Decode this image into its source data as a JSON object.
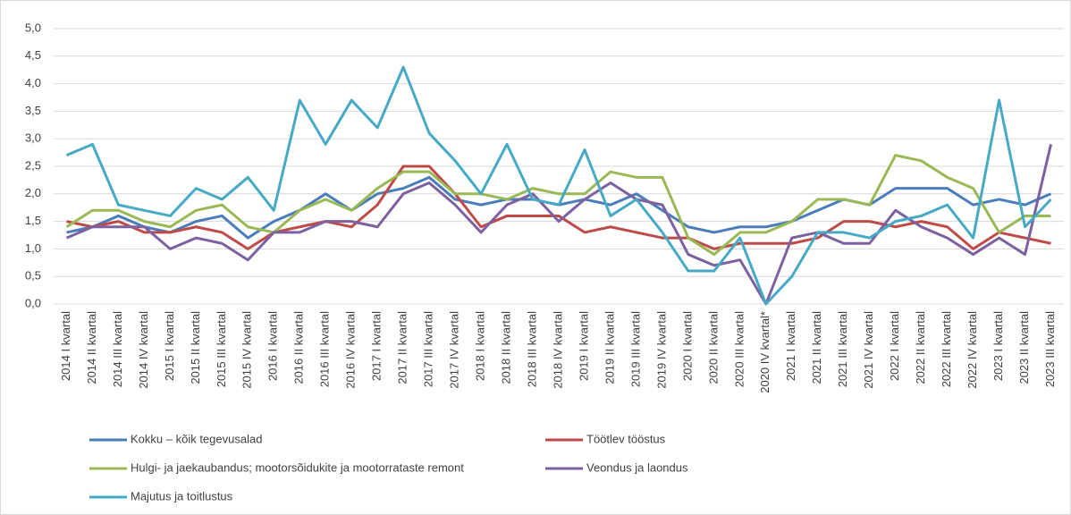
{
  "chart_data": {
    "type": "line",
    "categories": [
      "2014 I kvartal",
      "2014 II kvartal",
      "2014 III kvartal",
      "2014 IV kvartal",
      "2015 I kvartal",
      "2015 II kvartal",
      "2015 III kvartal",
      "2015 IV kvartal",
      "2016 I kvartal",
      "2016 II kvartal",
      "2016 III kvartal",
      "2016 IV kvartal",
      "2017 I kvartal",
      "2017 II kvartal",
      "2017 III kvartal",
      "2017 IV kvartal",
      "2018 I kvartal",
      "2018 II kvartal",
      "2018 III kvartal",
      "2018 IV kvartal",
      "2019 I kvartal",
      "2019 II kvartal",
      "2019 III kvartal",
      "2019 IV kvartal",
      "2020 I kvartal",
      "2020 II kvartal",
      "2020 III kvartal",
      "2020 IV kvartal*",
      "2021 I kvartal",
      "2021 II kvartal",
      "2021 III kvartal",
      "2021 IV kvartal",
      "2022 I kvartal",
      "2022 II kvartal",
      "2022 III kvartal",
      "2022 IV kvartal",
      "2023 I kvartal",
      "2023 II kvartal",
      "2023 III kvartal"
    ],
    "series": [
      {
        "name": "Kokku – kõik tegevusalad",
        "color": "#4a7ebb",
        "values": [
          1.3,
          1.4,
          1.6,
          1.4,
          1.3,
          1.5,
          1.6,
          1.2,
          1.5,
          1.7,
          2.0,
          1.7,
          2.0,
          2.1,
          2.3,
          1.9,
          1.8,
          1.9,
          1.9,
          1.8,
          1.9,
          1.8,
          2.0,
          1.7,
          1.4,
          1.3,
          1.4,
          1.4,
          1.5,
          1.7,
          1.9,
          1.8,
          2.1,
          2.1,
          2.1,
          1.8,
          1.9,
          1.8,
          2.0
        ]
      },
      {
        "name": "Töötlev tööstus",
        "color": "#be4b48",
        "values": [
          1.5,
          1.4,
          1.5,
          1.3,
          1.3,
          1.4,
          1.3,
          1.0,
          1.3,
          1.4,
          1.5,
          1.4,
          1.8,
          2.5,
          2.5,
          2.0,
          1.4,
          1.6,
          1.6,
          1.6,
          1.3,
          1.4,
          1.3,
          1.2,
          1.2,
          1.0,
          1.1,
          1.1,
          1.1,
          1.2,
          1.5,
          1.5,
          1.4,
          1.5,
          1.4,
          1.0,
          1.3,
          1.2,
          1.1
        ]
      },
      {
        "name": "Hulgi- ja jaekaubandus; mootorsõidukite ja mootorrataste remont",
        "color": "#98b954",
        "values": [
          1.4,
          1.7,
          1.7,
          1.5,
          1.4,
          1.7,
          1.8,
          1.4,
          1.3,
          1.7,
          1.9,
          1.7,
          2.1,
          2.4,
          2.4,
          2.0,
          2.0,
          1.9,
          2.1,
          2.0,
          2.0,
          2.4,
          2.3,
          2.3,
          1.2,
          0.9,
          1.3,
          1.3,
          1.5,
          1.9,
          1.9,
          1.8,
          2.7,
          2.6,
          2.3,
          2.1,
          1.3,
          1.6,
          1.6
        ]
      },
      {
        "name": "Veondus ja laondus",
        "color": "#7d60a0",
        "values": [
          1.2,
          1.4,
          1.4,
          1.4,
          1.0,
          1.2,
          1.1,
          0.8,
          1.3,
          1.3,
          1.5,
          1.5,
          1.4,
          2.0,
          2.2,
          1.8,
          1.3,
          1.8,
          2.0,
          1.5,
          1.9,
          2.2,
          1.9,
          1.8,
          0.9,
          0.7,
          0.8,
          0.0,
          1.2,
          1.3,
          1.1,
          1.1,
          1.7,
          1.4,
          1.2,
          0.9,
          1.2,
          0.9,
          2.9
        ]
      },
      {
        "name": "Majutus ja toitlustus",
        "color": "#46aac5",
        "values": [
          2.7,
          2.9,
          1.8,
          1.7,
          1.6,
          2.1,
          1.9,
          2.3,
          1.7,
          3.7,
          2.9,
          3.7,
          3.2,
          4.3,
          3.1,
          2.6,
          2.0,
          2.9,
          1.9,
          1.8,
          2.8,
          1.6,
          1.9,
          1.3,
          0.6,
          0.6,
          1.2,
          0.0,
          0.5,
          1.3,
          1.3,
          1.2,
          1.5,
          1.6,
          1.8,
          1.2,
          3.7,
          1.4,
          1.9
        ]
      }
    ],
    "ylim": [
      0,
      5
    ],
    "yticks": [
      {
        "value": 0,
        "label": "0,0"
      },
      {
        "value": 0.5,
        "label": "0,5"
      },
      {
        "value": 1,
        "label": "1,0"
      },
      {
        "value": 1.5,
        "label": "1,5"
      },
      {
        "value": 2,
        "label": "2,0"
      },
      {
        "value": 2.5,
        "label": "2,5"
      },
      {
        "value": 3,
        "label": "3,0"
      },
      {
        "value": 3.5,
        "label": "3,5"
      },
      {
        "value": 4,
        "label": "4,0"
      },
      {
        "value": 4.5,
        "label": "4,5"
      },
      {
        "value": 5,
        "label": "5,0"
      }
    ],
    "grid": true,
    "legend": "bottom"
  }
}
